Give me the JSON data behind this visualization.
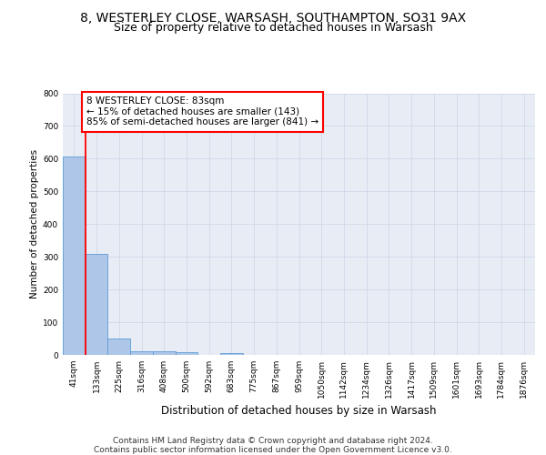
{
  "title_line1": "8, WESTERLEY CLOSE, WARSASH, SOUTHAMPTON, SO31 9AX",
  "title_line2": "Size of property relative to detached houses in Warsash",
  "xlabel": "Distribution of detached houses by size in Warsash",
  "ylabel": "Number of detached properties",
  "footer_line1": "Contains HM Land Registry data © Crown copyright and database right 2024.",
  "footer_line2": "Contains public sector information licensed under the Open Government Licence v3.0.",
  "bar_labels": [
    "41sqm",
    "133sqm",
    "225sqm",
    "316sqm",
    "408sqm",
    "500sqm",
    "592sqm",
    "683sqm",
    "775sqm",
    "867sqm",
    "959sqm",
    "1050sqm",
    "1142sqm",
    "1234sqm",
    "1326sqm",
    "1417sqm",
    "1509sqm",
    "1601sqm",
    "1693sqm",
    "1784sqm",
    "1876sqm"
  ],
  "bar_values": [
    608,
    310,
    50,
    12,
    12,
    7,
    0,
    6,
    0,
    0,
    0,
    0,
    0,
    0,
    0,
    0,
    0,
    0,
    0,
    0,
    0
  ],
  "bar_color": "#aec6e8",
  "bar_edge_color": "#5b9bd5",
  "grid_color": "#d0d8e8",
  "background_color": "#e8edf5",
  "annotation_box_text": "8 WESTERLEY CLOSE: 83sqm\n← 15% of detached houses are smaller (143)\n85% of semi-detached houses are larger (841) →",
  "annotation_box_color": "white",
  "annotation_box_edge_color": "red",
  "vline_color": "red",
  "ylim": [
    0,
    800
  ],
  "yticks": [
    0,
    100,
    200,
    300,
    400,
    500,
    600,
    700,
    800
  ],
  "title_fontsize": 10,
  "subtitle_fontsize": 9,
  "xlabel_fontsize": 8.5,
  "ylabel_fontsize": 7.5,
  "tick_fontsize": 6.5,
  "annotation_fontsize": 7.5,
  "footer_fontsize": 6.5
}
